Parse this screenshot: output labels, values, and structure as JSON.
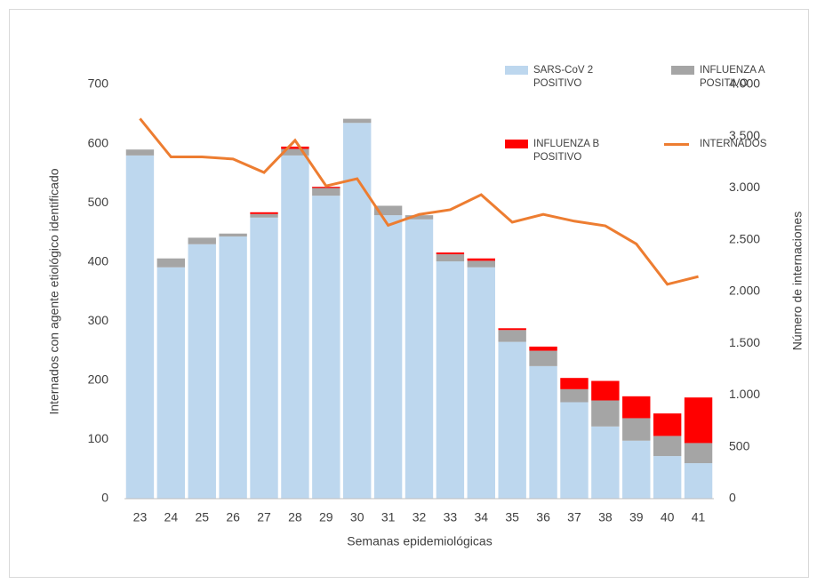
{
  "chart_data": {
    "type": "bar",
    "stacked": true,
    "xlabel": "Semanas epidemiológicas",
    "ylabel": "Internados con agente etiológico identificado",
    "y2label": "Número de internaciones",
    "categories": [
      "23",
      "24",
      "25",
      "26",
      "27",
      "28",
      "29",
      "30",
      "31",
      "32",
      "33",
      "34",
      "35",
      "36",
      "37",
      "38",
      "39",
      "40",
      "41"
    ],
    "series": [
      {
        "name": "SARS-CoV 2 POSITIVO",
        "color": "#bdd7ee",
        "values": [
          580,
          391,
          430,
          443,
          475,
          580,
          512,
          635,
          479,
          472,
          401,
          391,
          265,
          224,
          163,
          122,
          98,
          72,
          60
        ]
      },
      {
        "name": "INFLUENZA A POSITIVO",
        "color": "#a5a5a5",
        "values": [
          10,
          15,
          11,
          5,
          6,
          11,
          13,
          7,
          16,
          7,
          12,
          11,
          20,
          26,
          22,
          44,
          38,
          34,
          34
        ]
      },
      {
        "name": "INFLUENZA B POSITIVO",
        "color": "#ff0000",
        "values": [
          0,
          0,
          0,
          0,
          3,
          4,
          2,
          0,
          0,
          0,
          3,
          4,
          3,
          7,
          19,
          33,
          37,
          38,
          77
        ]
      },
      {
        "name": "INTERNADOS",
        "color": "#ed7d31",
        "type": "line",
        "axis": "y2",
        "values": [
          3670,
          3300,
          3300,
          3280,
          3150,
          3460,
          3020,
          3090,
          2640,
          2745,
          2790,
          2935,
          2670,
          2745,
          2680,
          2635,
          2460,
          2070,
          2145
        ]
      }
    ],
    "ylim": [
      0,
      700
    ],
    "yticks": [
      0,
      100,
      200,
      300,
      400,
      500,
      600,
      700
    ],
    "y2lim": [
      0,
      4000
    ],
    "y2ticks": [
      0,
      500,
      {
        "value": 1000,
        "label": "1.000"
      },
      {
        "value": 1500,
        "label": "1.500"
      },
      {
        "value": 2000,
        "label": "2.000"
      },
      {
        "value": 2500,
        "label": "2.500"
      },
      {
        "value": 3000,
        "label": "3.000"
      },
      {
        "value": 3500,
        "label": "3.500"
      },
      {
        "value": 4000,
        "label": "4.000"
      }
    ],
    "grid": false
  }
}
